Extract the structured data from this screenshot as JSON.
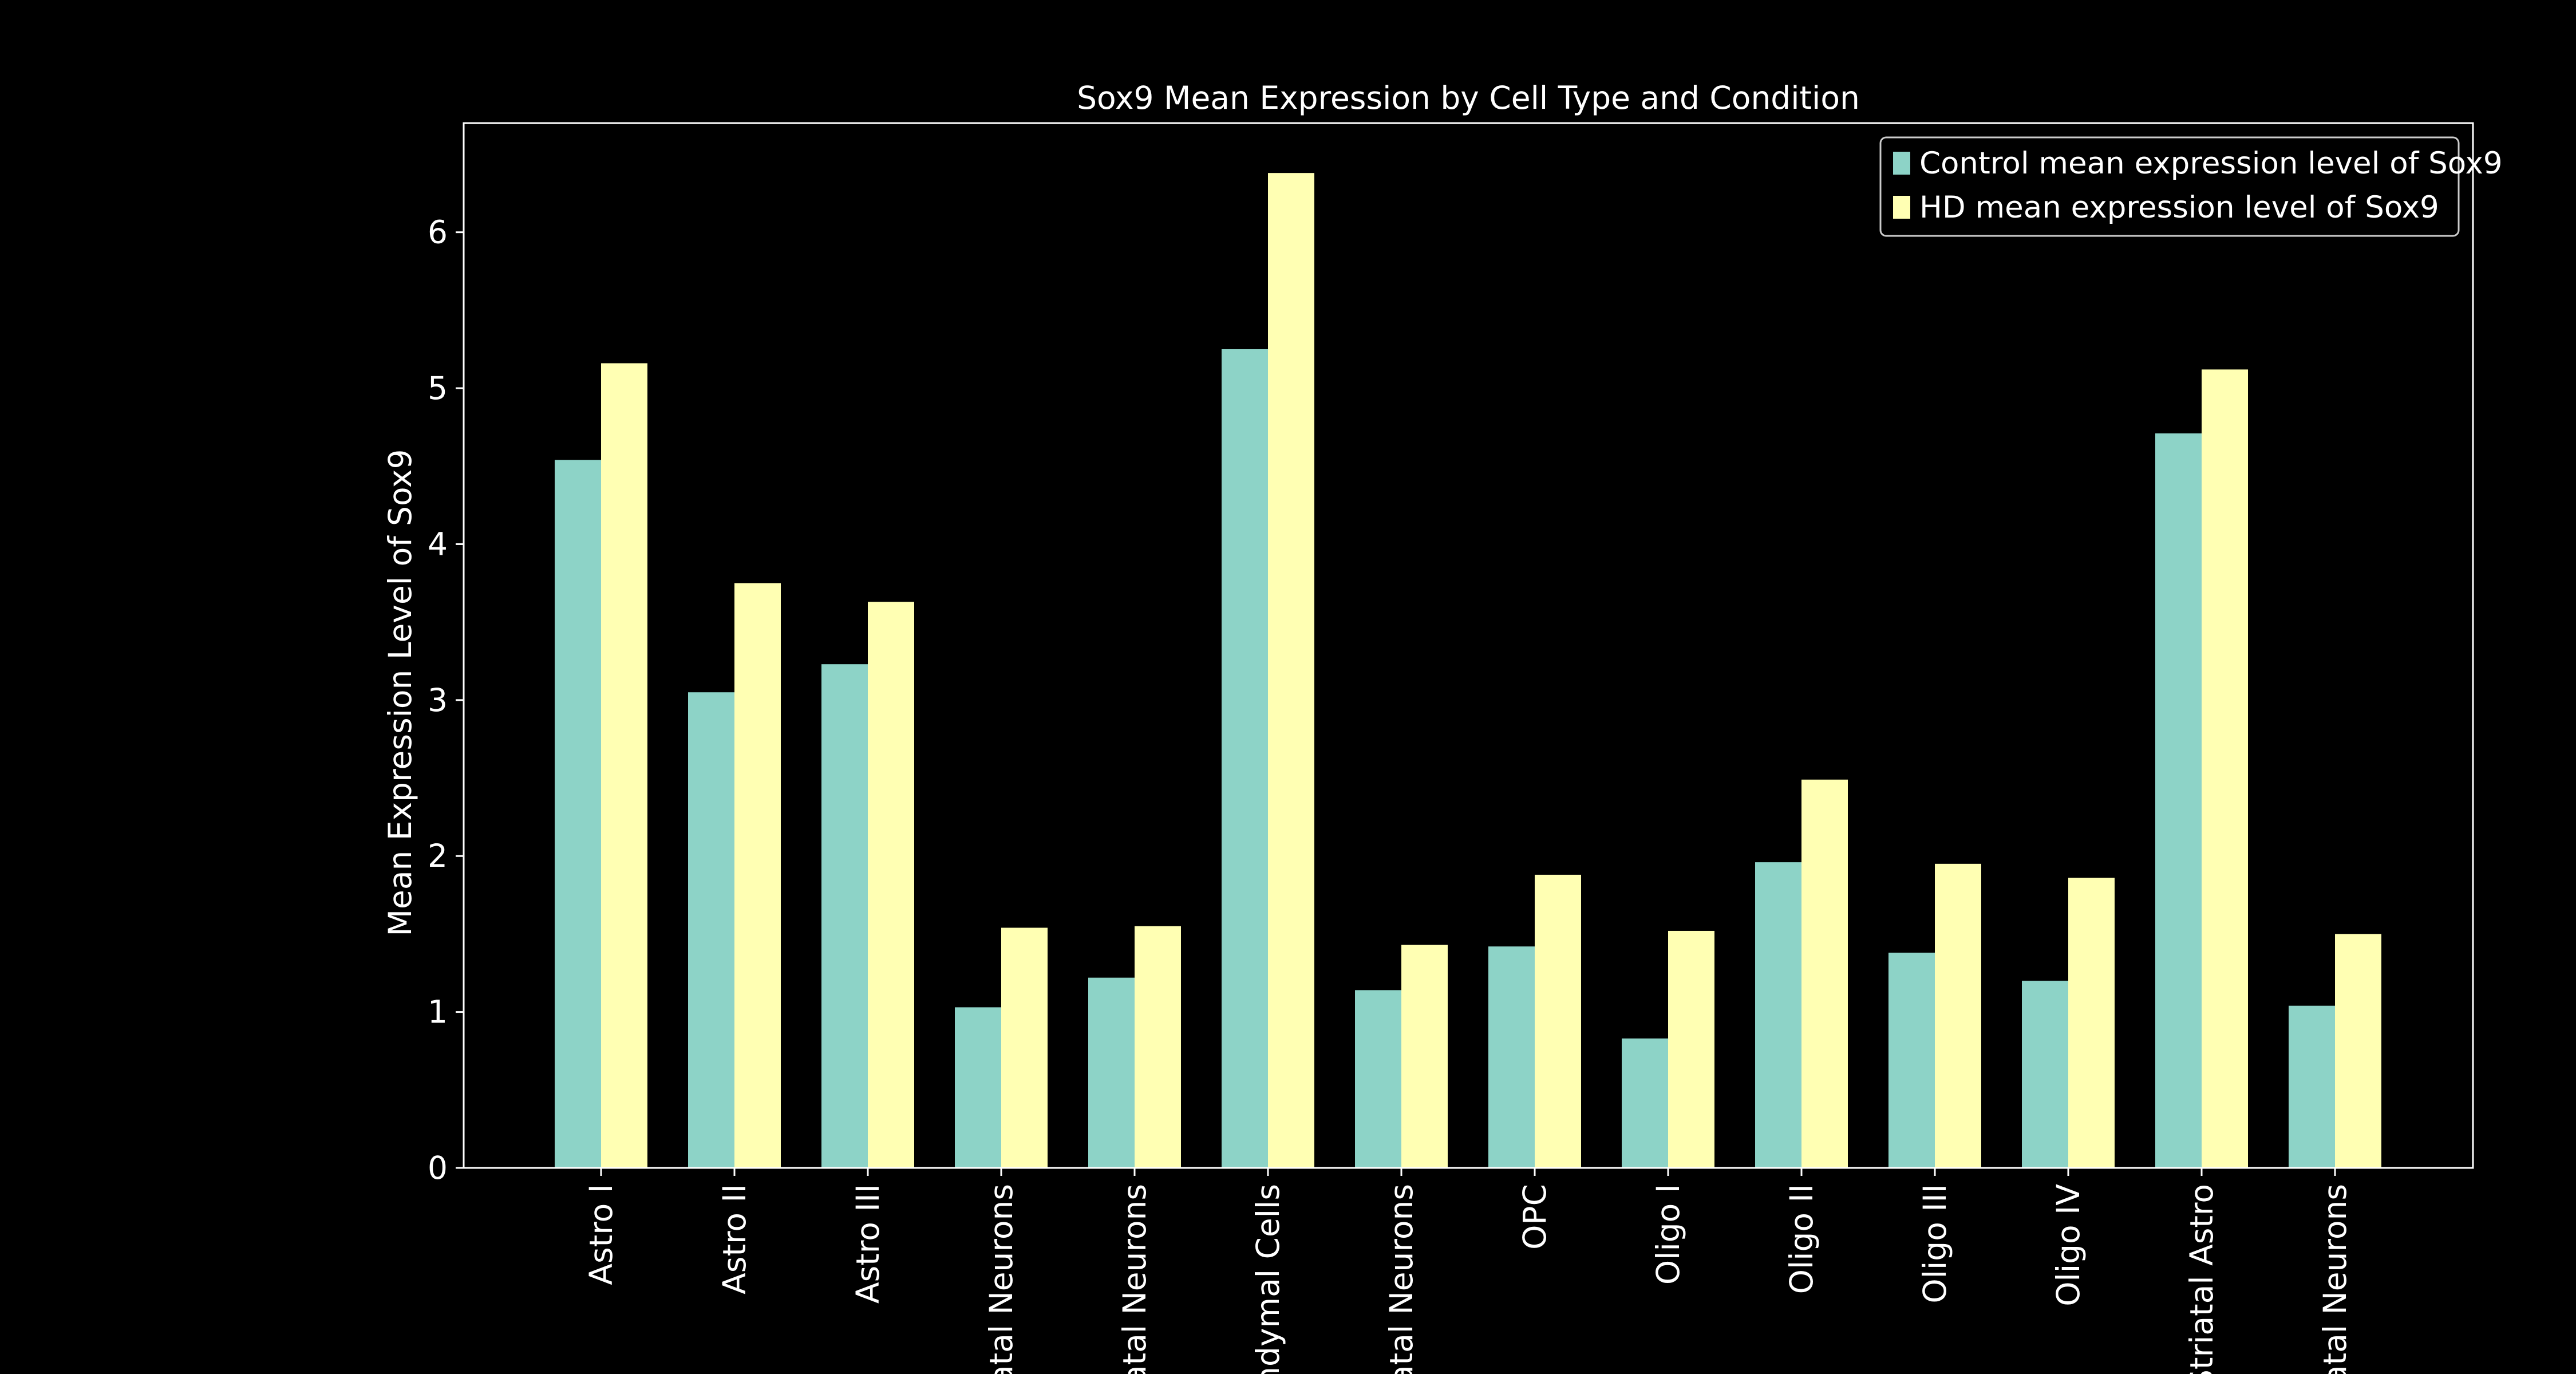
{
  "chart_data": {
    "type": "bar",
    "title": "Sox9 Mean Expression by Cell Type and Condition",
    "xlabel": "",
    "ylabel": "Mean Expression Level of Sox9",
    "ylim": [
      0,
      6.7
    ],
    "yticks": [
      0,
      1,
      2,
      3,
      4,
      5,
      6
    ],
    "grid": false,
    "legend_position": "top-right",
    "categories": [
      "Astro I",
      "Astro II",
      "Astro III",
      "atal Neurons",
      "atal Neurons",
      "ndymal Cells",
      "atal Neurons",
      "OPC",
      "Oligo I",
      "Oligo II",
      "Oligo III",
      "Oligo IV",
      "Striatal Astro",
      "atal Neurons"
    ],
    "series": [
      {
        "name": "Control mean expression level of Sox9",
        "color": "#8dd3c7",
        "values": [
          4.54,
          3.05,
          3.23,
          1.03,
          1.22,
          5.25,
          1.14,
          1.42,
          0.83,
          1.96,
          1.38,
          1.2,
          4.71,
          1.04
        ]
      },
      {
        "name": "HD mean expression level of Sox9",
        "color": "#ffffb3",
        "values": [
          5.16,
          3.75,
          3.63,
          1.54,
          1.55,
          6.38,
          1.43,
          1.88,
          1.52,
          2.49,
          1.95,
          1.86,
          5.12,
          1.5
        ]
      }
    ]
  },
  "colors": {
    "background": "#000000",
    "axes": "#ffffff",
    "text": "#ffffff"
  }
}
